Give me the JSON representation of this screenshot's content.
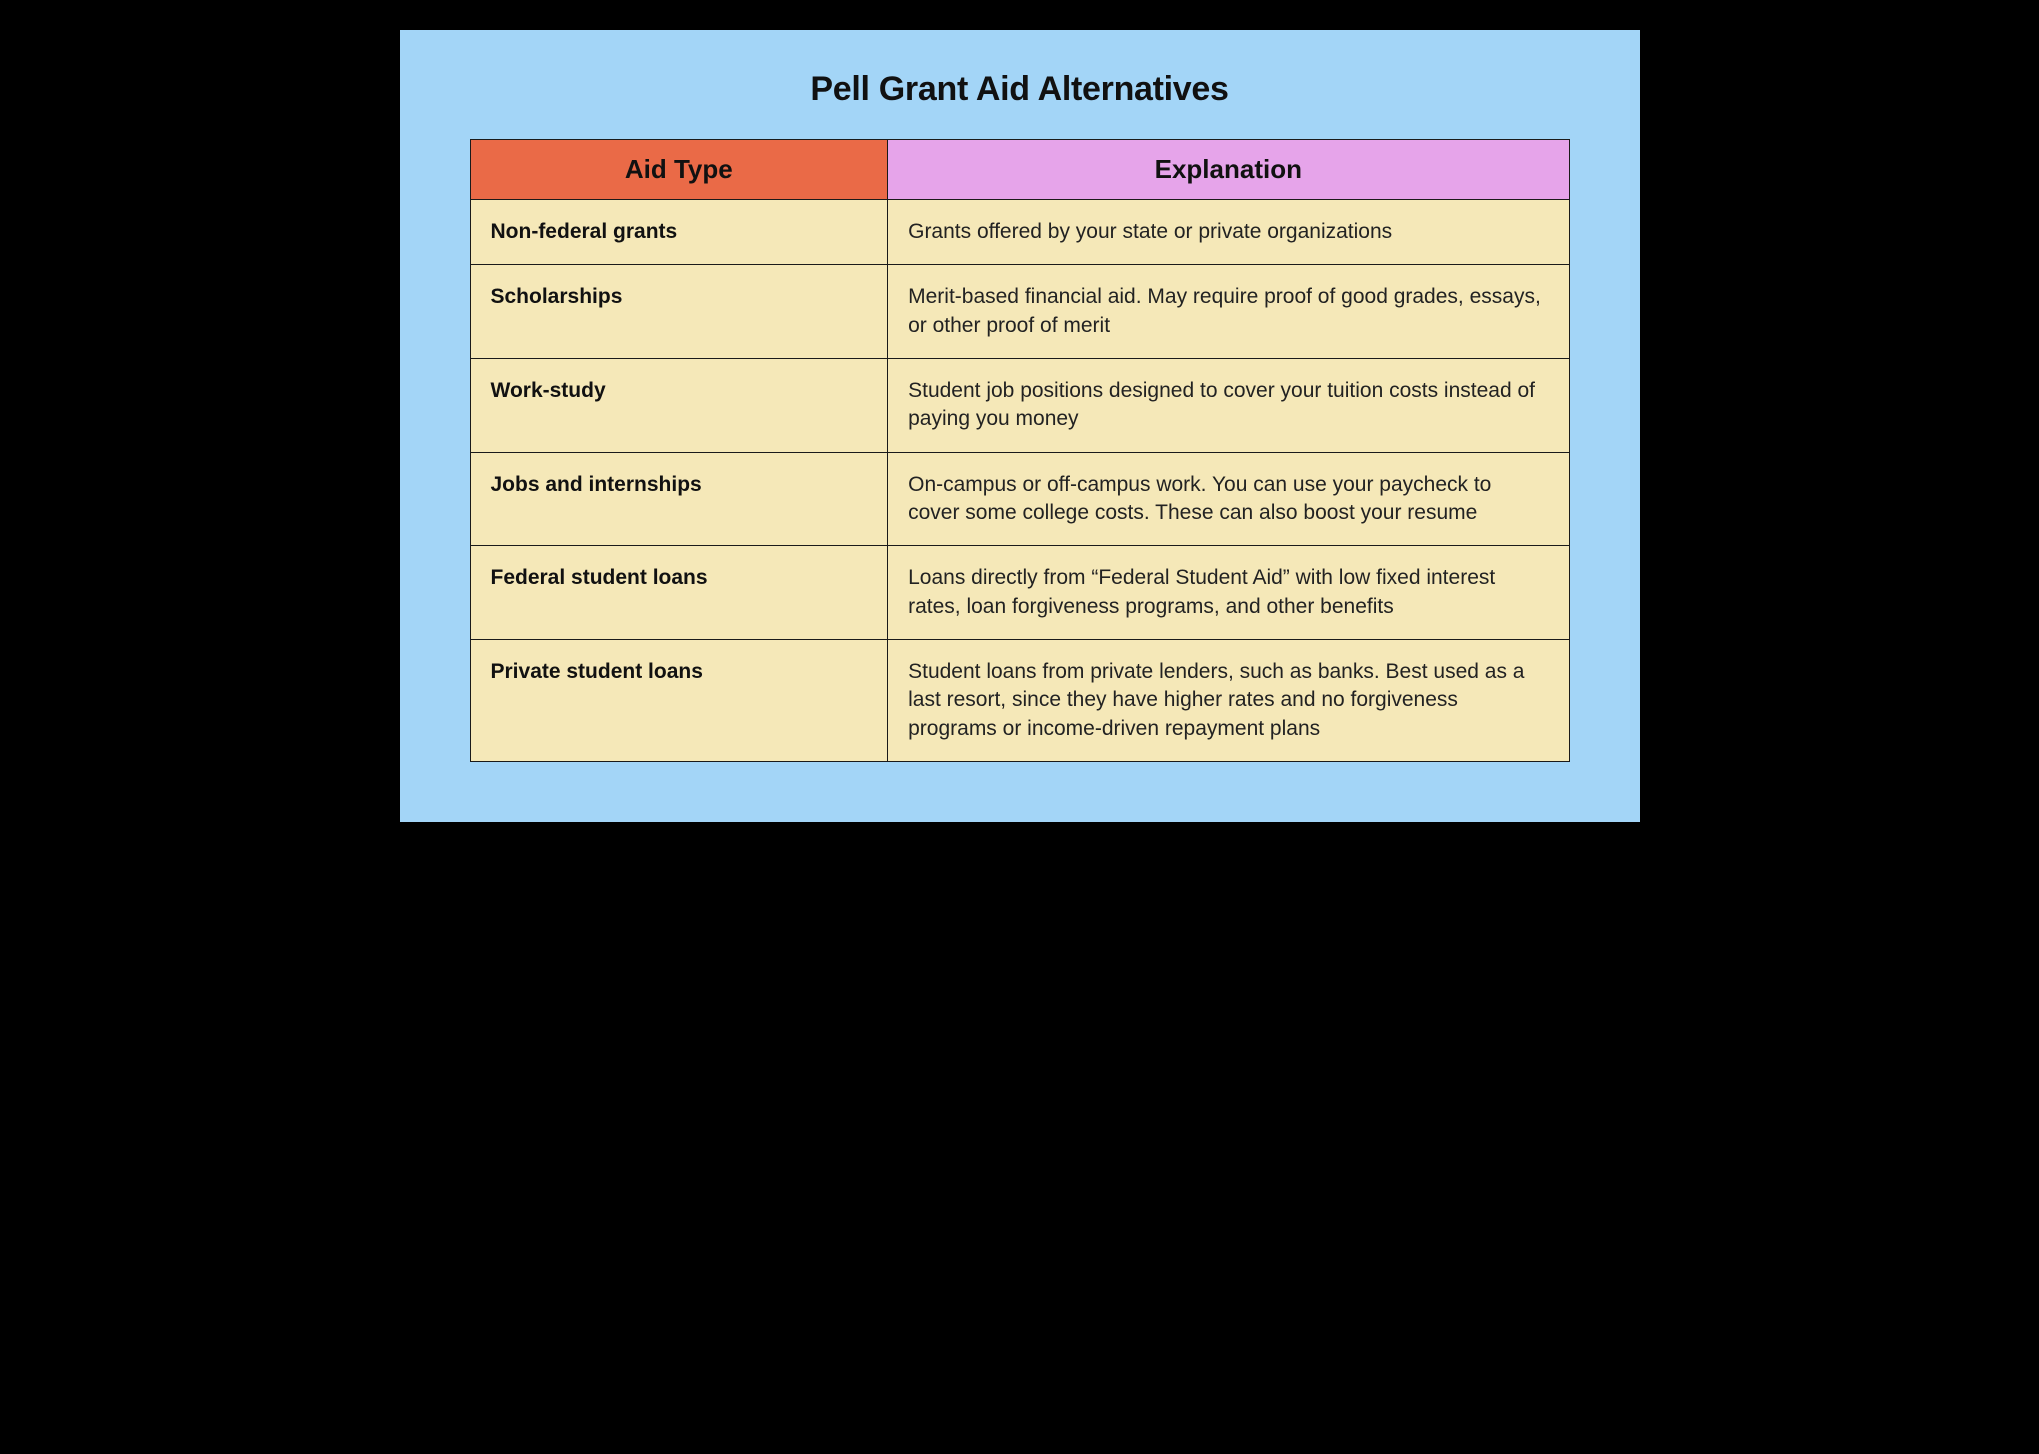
{
  "title": "Pell Grant Aid Alternatives",
  "table": {
    "type": "table",
    "columns": [
      {
        "label": "Aid Type",
        "bg": "#ea6a47",
        "width_pct": 38
      },
      {
        "label": "Explanation",
        "bg": "#e6a4ea",
        "width_pct": 62
      }
    ],
    "rows": [
      {
        "type": "Non-federal grants",
        "explanation": "Grants offered by your state or private organizations"
      },
      {
        "type": "Scholarships",
        "explanation": "Merit-based financial aid. May require proof of good grades, essays, or other proof of merit"
      },
      {
        "type": "Work-study",
        "explanation": "Student job positions designed to cover your tuition costs instead of paying you money"
      },
      {
        "type": "Jobs and internships",
        "explanation": "On-campus or off-campus work. You can use your paycheck to cover some college costs. These can also boost your resume"
      },
      {
        "type": "Federal student loans",
        "explanation": "Loans directly from “Federal Student Aid” with low fixed interest rates, loan forgiveness programs, and other benefits"
      },
      {
        "type": "Private student loans",
        "explanation": "Student loans from private lenders, such as banks. Best used as a last resort, since they have higher rates and no forgiveness programs or income-driven repayment plans"
      }
    ],
    "row_bg": "#f5e8b8",
    "border_color": "#1a1a1a",
    "header_fontsize": 26,
    "cell_fontsize": 21,
    "title_fontsize": 34
  },
  "background_color": "#a3d5f7",
  "page_bg": "#000000"
}
